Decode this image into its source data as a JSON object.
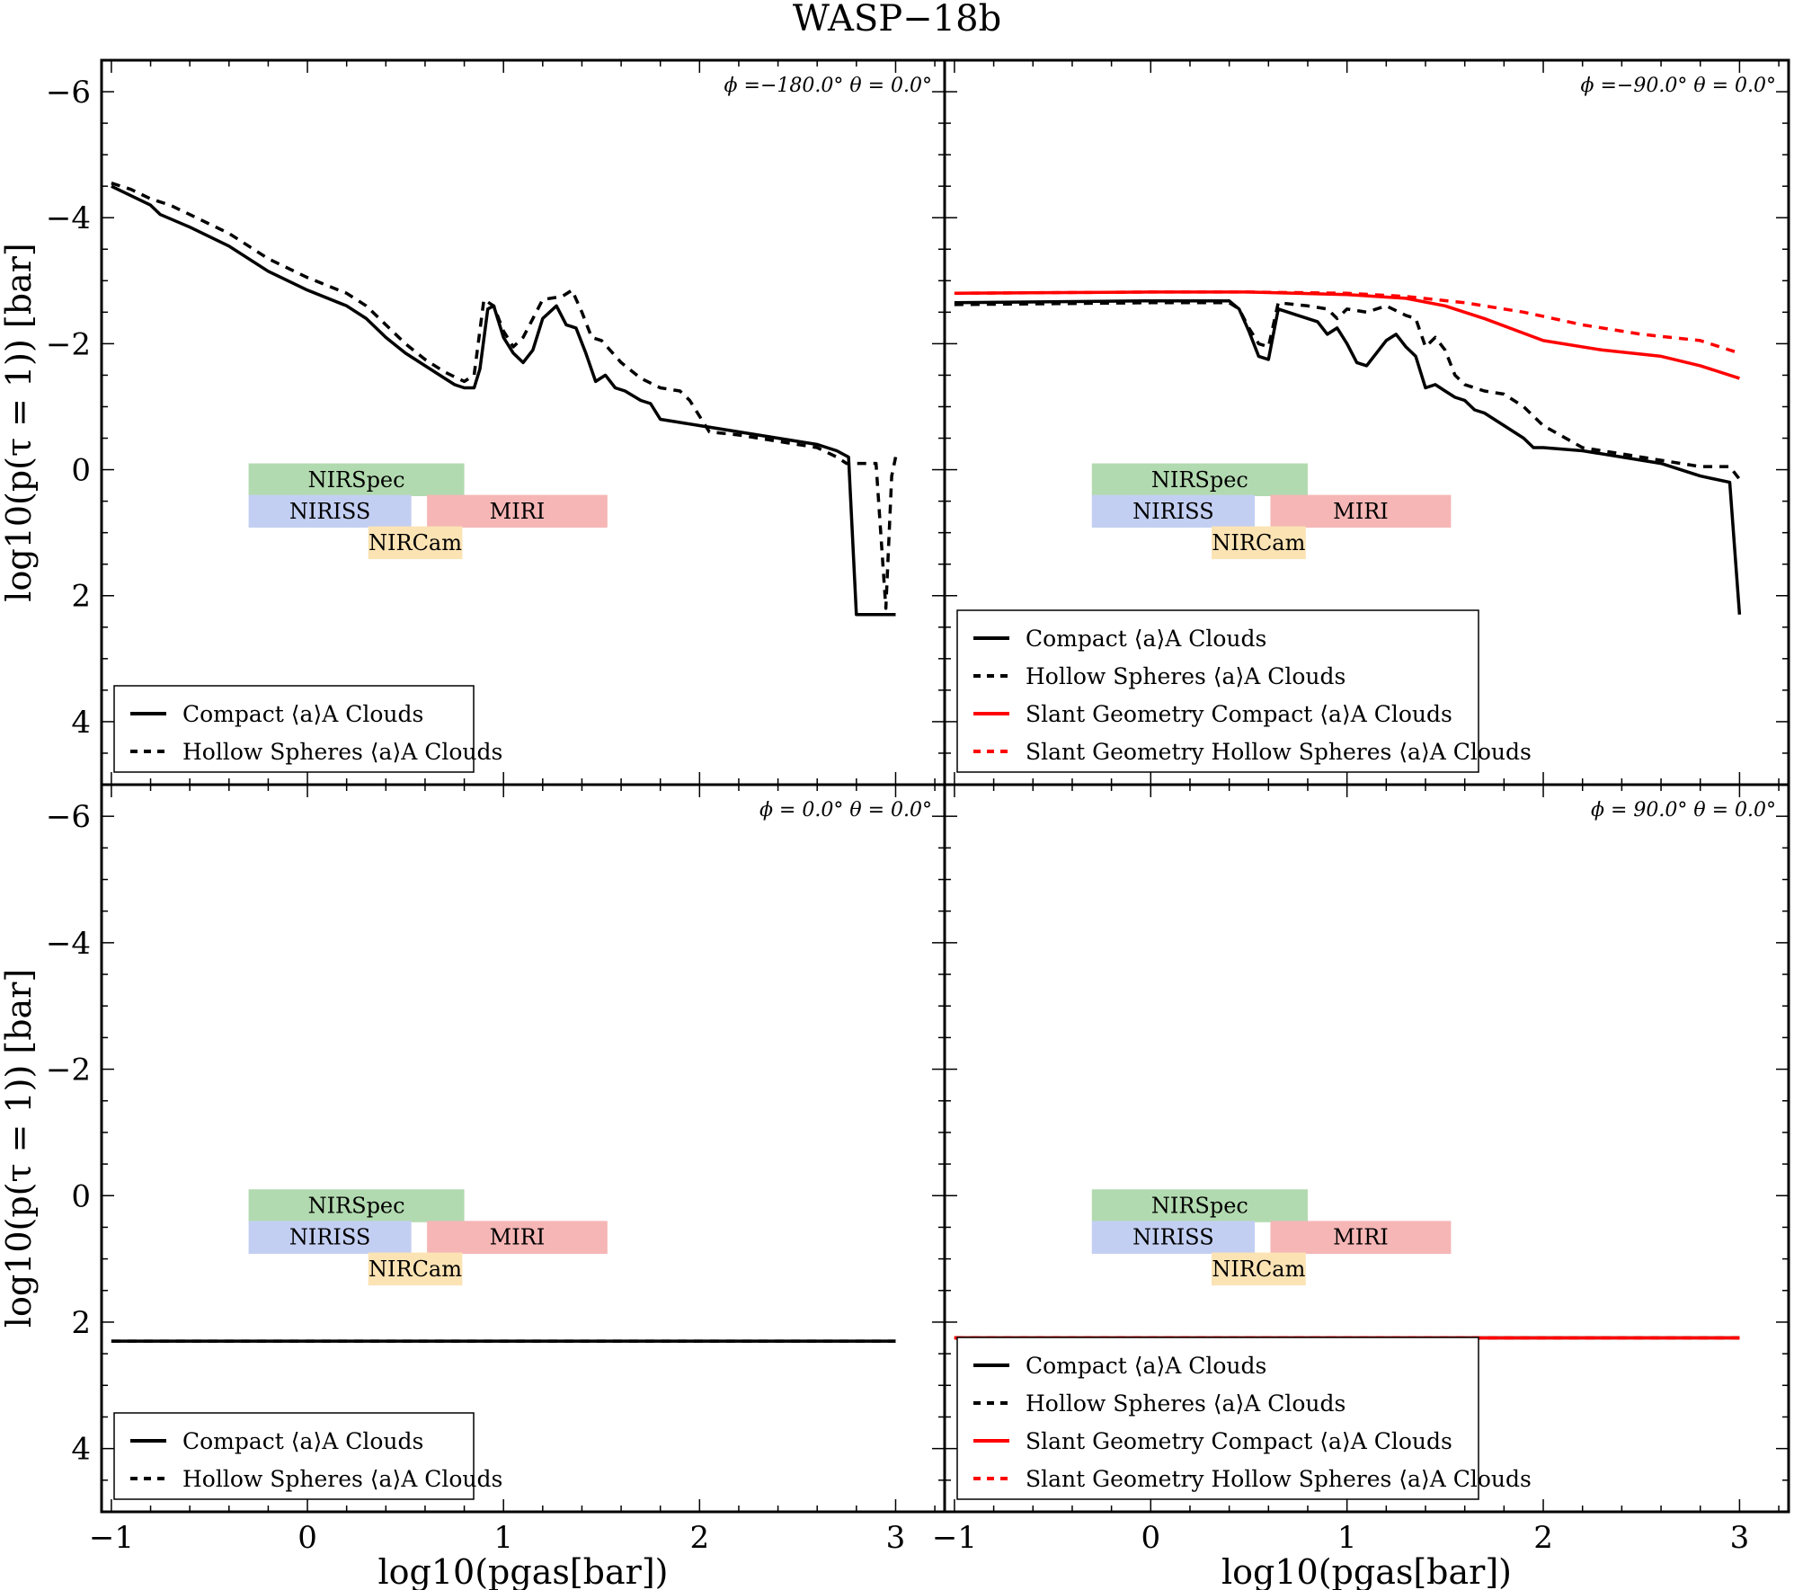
{
  "chart_data": {
    "type": "line",
    "title": "WASP−18b",
    "xlabel": "log10(pgas[bar])",
    "ylabel": "log10(p(τ = 1)) [bar]",
    "xlim": [
      -1.05,
      3.25
    ],
    "ylim": [
      5.0,
      -6.5
    ],
    "y_inverted": true,
    "grid": false,
    "xticks": [
      "−1",
      "0",
      "1",
      "2",
      "3"
    ],
    "yticks": [
      "−6",
      "−4",
      "−2",
      "0",
      "2",
      "4"
    ],
    "instrument_bands": [
      {
        "name": "NIRSpec",
        "color": "#b2dab0",
        "x_range": [
          -0.3,
          0.8
        ]
      },
      {
        "name": "NIRISS",
        "color": "#c3cff2",
        "x_range": [
          -0.3,
          0.53
        ]
      },
      {
        "name": "MIRI",
        "color": "#f6b6b6",
        "x_range": [
          0.61,
          1.53
        ]
      },
      {
        "name": "NIRCam",
        "color": "#fbe3b4",
        "x_range": [
          0.31,
          0.79
        ]
      }
    ],
    "panels": [
      {
        "annotation": "ϕ =−180.0° θ = 0.0°",
        "legend": [
          "Compact ⟨a⟩A Clouds",
          "Hollow Spheres ⟨a⟩A Clouds"
        ],
        "series": [
          {
            "name": "Compact ⟨a⟩A Clouds",
            "color": "#000000",
            "dash": "solid",
            "x": [
              -1.0,
              -0.9,
              -0.8,
              -0.75,
              -0.6,
              -0.4,
              -0.2,
              0.0,
              0.2,
              0.3,
              0.4,
              0.5,
              0.6,
              0.7,
              0.75,
              0.8,
              0.85,
              0.88,
              0.92,
              0.95,
              1.0,
              1.05,
              1.1,
              1.15,
              1.2,
              1.27,
              1.32,
              1.37,
              1.42,
              1.47,
              1.52,
              1.57,
              1.62,
              1.7,
              1.75,
              1.8,
              1.9,
              2.0,
              2.2,
              2.4,
              2.6,
              2.7,
              2.76,
              2.8,
              2.9,
              3.0
            ],
            "y": [
              -4.5,
              -4.35,
              -4.2,
              -4.05,
              -3.85,
              -3.55,
              -3.15,
              -2.85,
              -2.6,
              -2.4,
              -2.1,
              -1.85,
              -1.65,
              -1.45,
              -1.35,
              -1.3,
              -1.3,
              -1.6,
              -2.55,
              -2.6,
              -2.1,
              -1.85,
              -1.7,
              -1.9,
              -2.4,
              -2.6,
              -2.3,
              -2.25,
              -1.85,
              -1.4,
              -1.5,
              -1.3,
              -1.25,
              -1.1,
              -1.05,
              -0.8,
              -0.75,
              -0.7,
              -0.6,
              -0.5,
              -0.4,
              -0.3,
              -0.2,
              2.3,
              2.3,
              2.3
            ]
          },
          {
            "name": "Hollow Spheres ⟨a⟩A Clouds",
            "color": "#000000",
            "dash": "dashed",
            "x": [
              -1.0,
              -0.9,
              -0.8,
              -0.7,
              -0.6,
              -0.4,
              -0.2,
              0.0,
              0.2,
              0.3,
              0.4,
              0.5,
              0.6,
              0.7,
              0.8,
              0.85,
              0.9,
              0.95,
              1.0,
              1.05,
              1.1,
              1.15,
              1.2,
              1.3,
              1.35,
              1.4,
              1.45,
              1.5,
              1.6,
              1.7,
              1.8,
              1.9,
              1.95,
              2.05,
              2.2,
              2.4,
              2.6,
              2.7,
              2.75,
              2.9,
              2.95,
              2.98,
              3.0
            ],
            "y": [
              -4.55,
              -4.45,
              -4.3,
              -4.2,
              -4.05,
              -3.75,
              -3.35,
              -3.05,
              -2.8,
              -2.6,
              -2.3,
              -2.0,
              -1.75,
              -1.55,
              -1.4,
              -1.5,
              -2.7,
              -2.6,
              -2.2,
              -1.95,
              -2.1,
              -2.4,
              -2.7,
              -2.75,
              -2.85,
              -2.5,
              -2.1,
              -2.05,
              -1.7,
              -1.45,
              -1.3,
              -1.25,
              -1.1,
              -0.6,
              -0.55,
              -0.45,
              -0.35,
              -0.2,
              -0.1,
              -0.1,
              2.2,
              0.1,
              -0.2
            ]
          }
        ]
      },
      {
        "annotation": "ϕ =−90.0° θ = 0.0°",
        "legend": [
          "Compact ⟨a⟩A Clouds",
          "Hollow Spheres ⟨a⟩A Clouds",
          "Slant Geometry Compact ⟨a⟩A Clouds",
          "Slant Geometry Hollow Spheres ⟨a⟩A Clouds"
        ],
        "series": [
          {
            "name": "Compact ⟨a⟩A Clouds",
            "color": "#000000",
            "dash": "solid",
            "x": [
              -1.0,
              0.0,
              0.4,
              0.45,
              0.5,
              0.55,
              0.6,
              0.65,
              0.75,
              0.85,
              0.9,
              0.95,
              1.0,
              1.05,
              1.1,
              1.15,
              1.2,
              1.25,
              1.3,
              1.35,
              1.4,
              1.45,
              1.5,
              1.55,
              1.6,
              1.65,
              1.7,
              1.8,
              1.9,
              1.95,
              2.0,
              2.2,
              2.4,
              2.6,
              2.8,
              2.95,
              3.0
            ],
            "y": [
              -2.65,
              -2.68,
              -2.68,
              -2.55,
              -2.2,
              -1.8,
              -1.75,
              -2.55,
              -2.45,
              -2.35,
              -2.15,
              -2.25,
              -2.0,
              -1.7,
              -1.65,
              -1.85,
              -2.05,
              -2.15,
              -1.95,
              -1.8,
              -1.3,
              -1.35,
              -1.25,
              -1.15,
              -1.1,
              -0.95,
              -0.9,
              -0.7,
              -0.5,
              -0.35,
              -0.35,
              -0.3,
              -0.2,
              -0.1,
              0.1,
              0.2,
              2.3
            ]
          },
          {
            "name": "Hollow Spheres ⟨a⟩A Clouds",
            "color": "#000000",
            "dash": "dashed",
            "x": [
              -1.0,
              0.0,
              0.4,
              0.45,
              0.5,
              0.55,
              0.6,
              0.65,
              0.8,
              0.9,
              0.95,
              1.0,
              1.1,
              1.2,
              1.3,
              1.35,
              1.4,
              1.45,
              1.5,
              1.55,
              1.6,
              1.7,
              1.8,
              1.9,
              2.0,
              2.2,
              2.4,
              2.6,
              2.8,
              2.95,
              3.0
            ],
            "y": [
              -2.62,
              -2.65,
              -2.65,
              -2.55,
              -2.25,
              -2.0,
              -1.95,
              -2.65,
              -2.6,
              -2.55,
              -2.4,
              -2.55,
              -2.5,
              -2.6,
              -2.45,
              -2.4,
              -1.95,
              -2.1,
              -1.9,
              -1.5,
              -1.35,
              -1.25,
              -1.2,
              -1.0,
              -0.7,
              -0.35,
              -0.25,
              -0.15,
              -0.05,
              -0.05,
              0.15
            ]
          },
          {
            "name": "Slant Geometry Compact ⟨a⟩A Clouds",
            "color": "#ff0000",
            "dash": "solid",
            "x": [
              -1.0,
              0.0,
              0.5,
              1.0,
              1.3,
              1.5,
              1.7,
              2.0,
              2.3,
              2.6,
              2.8,
              3.0
            ],
            "y": [
              -2.8,
              -2.82,
              -2.82,
              -2.78,
              -2.72,
              -2.6,
              -2.4,
              -2.05,
              -1.9,
              -1.8,
              -1.65,
              -1.45
            ]
          },
          {
            "name": "Slant Geometry Hollow Spheres ⟨a⟩A Clouds",
            "color": "#ff0000",
            "dash": "dashed",
            "x": [
              -1.0,
              0.0,
              0.5,
              1.0,
              1.3,
              1.6,
              1.9,
              2.2,
              2.5,
              2.8,
              3.0
            ],
            "y": [
              -2.8,
              -2.82,
              -2.82,
              -2.8,
              -2.75,
              -2.65,
              -2.5,
              -2.3,
              -2.15,
              -2.05,
              -1.85
            ]
          }
        ]
      },
      {
        "annotation": "ϕ =  0.0° θ = 0.0°",
        "legend": [
          "Compact ⟨a⟩A Clouds",
          "Hollow Spheres ⟨a⟩A Clouds"
        ],
        "series": [
          {
            "name": "Compact ⟨a⟩A Clouds",
            "color": "#000000",
            "dash": "solid",
            "x": [
              -1.0,
              3.0
            ],
            "y": [
              2.3,
              2.3
            ]
          },
          {
            "name": "Hollow Spheres ⟨a⟩A Clouds",
            "color": "#000000",
            "dash": "dashed",
            "x": [
              -1.0,
              3.0
            ],
            "y": [
              2.3,
              2.3
            ]
          }
        ]
      },
      {
        "annotation": "ϕ =  90.0° θ = 0.0°",
        "legend": [
          "Compact ⟨a⟩A Clouds",
          "Hollow Spheres ⟨a⟩A Clouds",
          "Slant Geometry Compact ⟨a⟩A Clouds",
          "Slant Geometry Hollow Spheres ⟨a⟩A Clouds"
        ],
        "series": [
          {
            "name": "Compact ⟨a⟩A Clouds",
            "color": "#000000",
            "dash": "solid",
            "x": [
              -1.0,
              3.0
            ],
            "y": [
              2.25,
              2.25
            ]
          },
          {
            "name": "Hollow Spheres ⟨a⟩A Clouds",
            "color": "#000000",
            "dash": "dashed",
            "x": [
              -1.0,
              3.0
            ],
            "y": [
              2.25,
              2.25
            ]
          },
          {
            "name": "Slant Geometry Compact ⟨a⟩A Clouds",
            "color": "#ff0000",
            "dash": "solid",
            "x": [
              -1.0,
              3.0
            ],
            "y": [
              2.25,
              2.25
            ]
          },
          {
            "name": "Slant Geometry Hollow Spheres ⟨a⟩A Clouds",
            "color": "#ff0000",
            "dash": "dashed",
            "x": [
              -1.0,
              3.0
            ],
            "y": [
              2.25,
              2.25
            ]
          }
        ]
      }
    ]
  }
}
